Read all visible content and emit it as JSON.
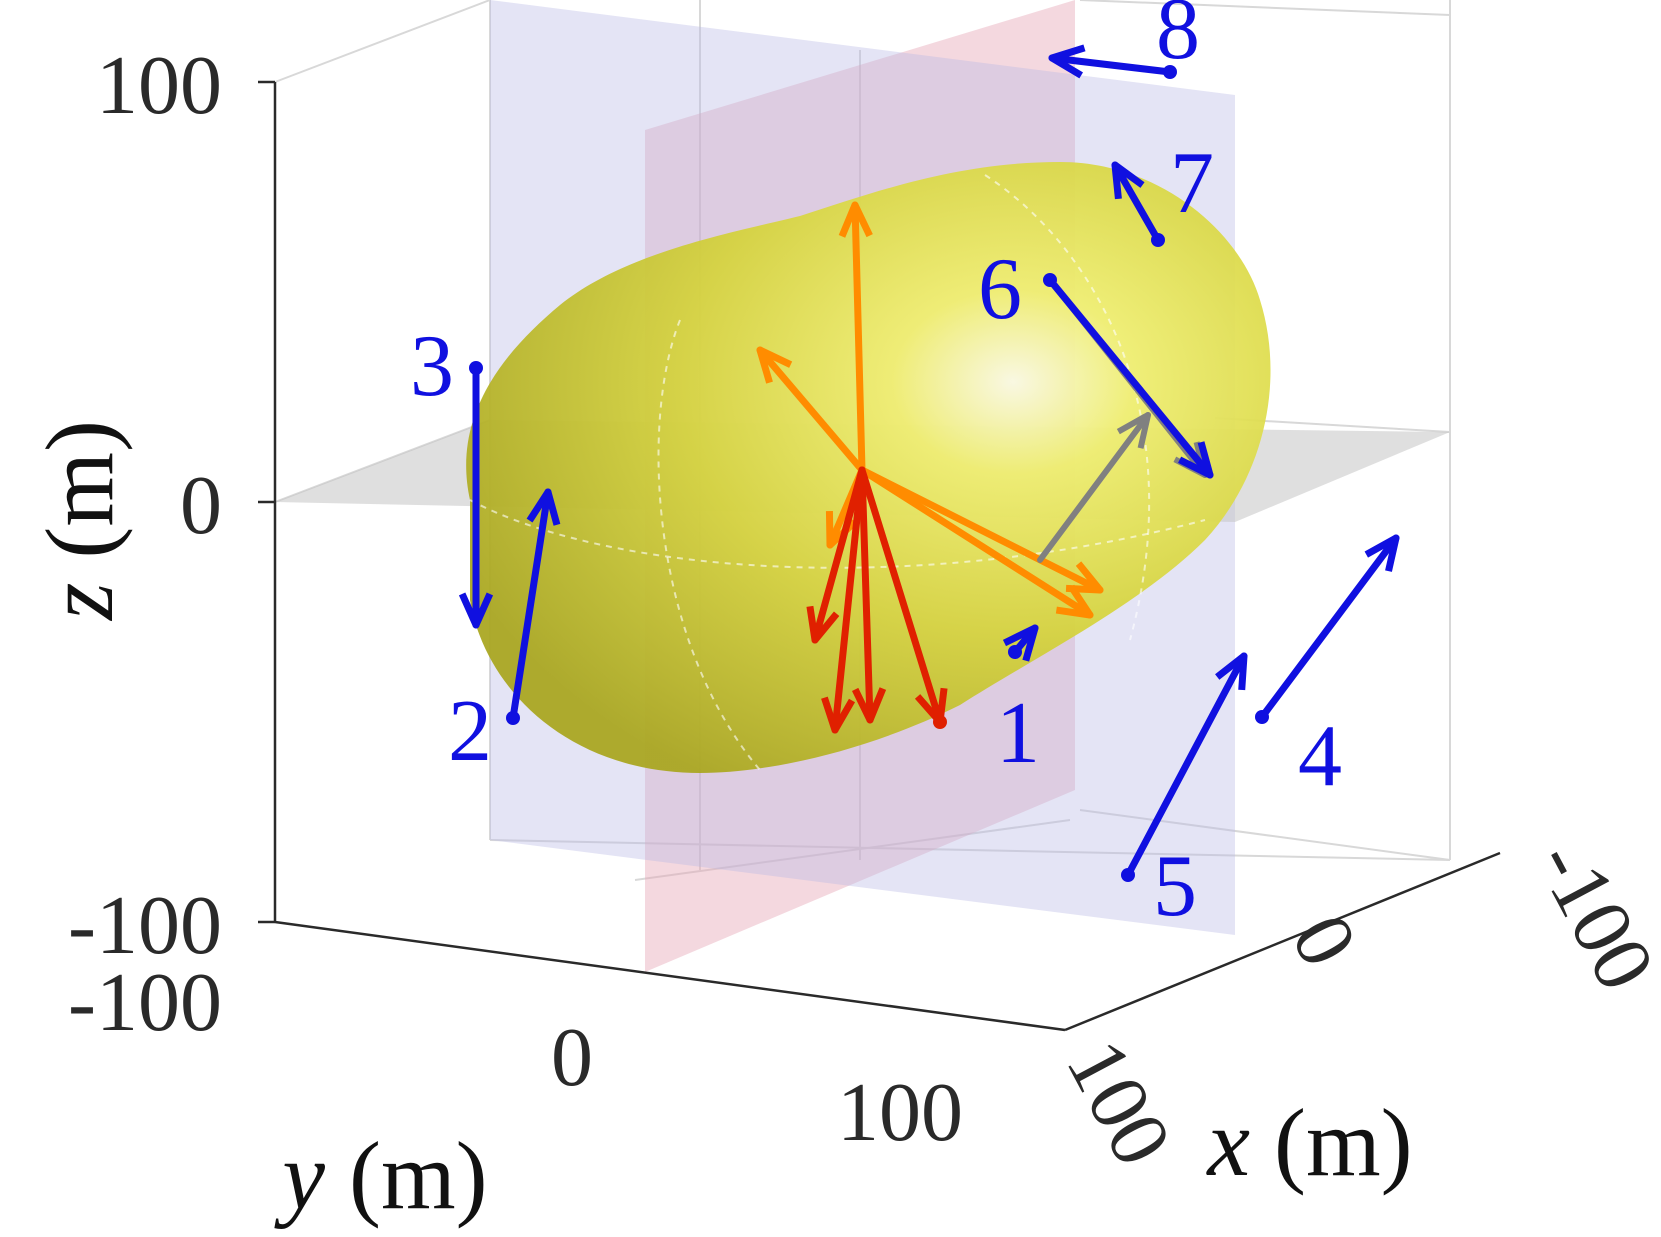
{
  "chart_data": {
    "type": "3d-surface-with-vectors",
    "xlabel": "x (m)",
    "ylabel": "y (m)",
    "zlabel": "z (m)",
    "axis_vars": {
      "x": "x",
      "y": "y",
      "z": "z"
    },
    "units": "(m)",
    "xlim": [
      -100,
      100
    ],
    "ylim": [
      -100,
      100
    ],
    "zlim": [
      -100,
      100
    ],
    "xticks": [
      "-100",
      "0",
      "100"
    ],
    "yticks": [
      "-100",
      "0",
      "100"
    ],
    "zticks": [
      "-100",
      "0",
      "100"
    ],
    "grid": true,
    "planes": [
      {
        "name": "x=0 plane",
        "color": "#e6a8b8"
      },
      {
        "name": "y=0 plane",
        "color": "#b8b8e6"
      },
      {
        "name": "z=0 plane",
        "color": "#c4c4c4"
      }
    ],
    "surface": {
      "shape": "ellipsoid",
      "color": "#e6e63a"
    },
    "numbered_vectors": [
      {
        "label": "1",
        "color": "#1010e0"
      },
      {
        "label": "2",
        "color": "#1010e0"
      },
      {
        "label": "3",
        "color": "#1010e0"
      },
      {
        "label": "4",
        "color": "#1010e0"
      },
      {
        "label": "5",
        "color": "#1010e0"
      },
      {
        "label": "6",
        "color": "#1010e0"
      },
      {
        "label": "7",
        "color": "#1010e0"
      },
      {
        "label": "8",
        "color": "#1010e0"
      }
    ],
    "secondary_vector_color": "#808080",
    "center_vector_colors": [
      "#ff8c00",
      "#e02000"
    ]
  }
}
